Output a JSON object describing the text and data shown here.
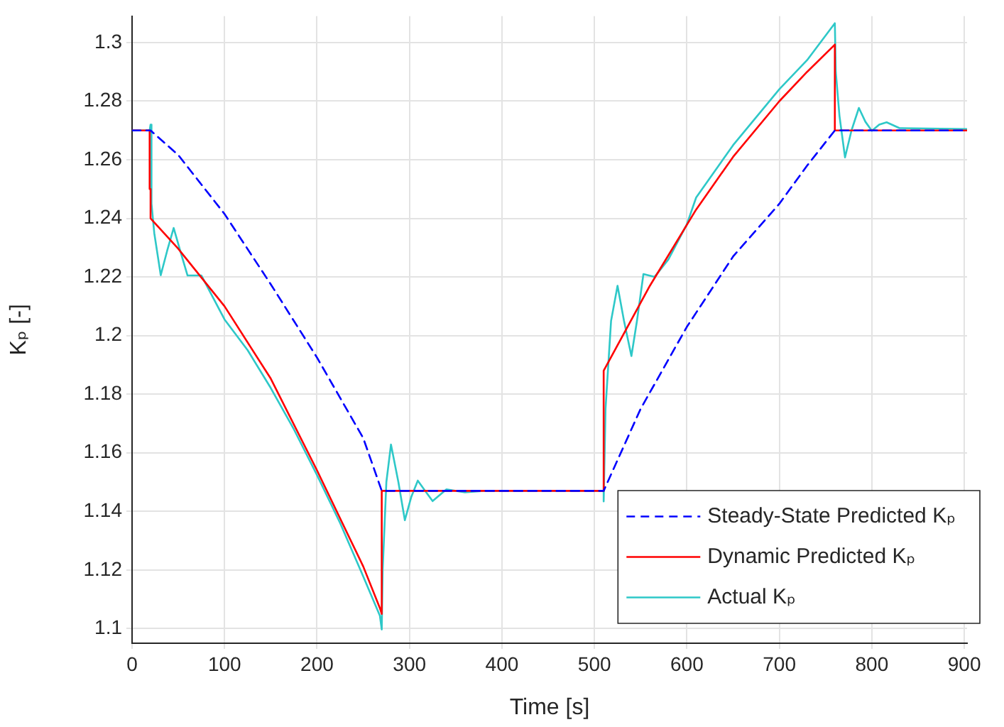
{
  "chart_data": {
    "type": "line",
    "xlabel": "Time [s]",
    "ylabel": "Kₚ [-]",
    "xlim": [
      0,
      903
    ],
    "ylim": [
      1.095,
      1.309
    ],
    "xticks": [
      0,
      100,
      200,
      300,
      400,
      500,
      600,
      700,
      800,
      900
    ],
    "yticks": [
      1.1,
      1.12,
      1.14,
      1.16,
      1.18,
      1.2,
      1.22,
      1.24,
      1.26,
      1.28,
      1.3
    ],
    "grid": true,
    "legend": "bottom right",
    "marker": "none",
    "series": [
      {
        "name": "Steady-State Predicted Kₚ",
        "color": "#0000ff",
        "line_style": "dashed",
        "x": [
          0,
          20,
          50,
          100,
          150,
          200,
          250,
          270,
          510,
          550,
          600,
          650,
          700,
          730,
          760,
          903
        ],
        "values": [
          1.27,
          1.27,
          1.2616,
          1.2415,
          1.2175,
          1.1925,
          1.165,
          1.147,
          1.147,
          1.175,
          1.203,
          1.227,
          1.245,
          1.258,
          1.27,
          1.27
        ]
      },
      {
        "name": "Dynamic Predicted Kₚ",
        "color": "#ff0000",
        "line_style": "solid",
        "x": [
          0,
          19,
          19,
          20,
          20,
          50,
          100,
          150,
          200,
          250,
          268,
          270,
          270,
          510,
          510,
          560,
          610,
          650,
          700,
          730,
          760,
          760,
          903
        ],
        "values": [
          1.27,
          1.27,
          1.25,
          1.25,
          1.24,
          1.2296,
          1.21,
          1.1853,
          1.154,
          1.1212,
          1.107,
          1.105,
          1.147,
          1.147,
          1.188,
          1.217,
          1.243,
          1.261,
          1.28,
          1.29,
          1.2993,
          1.27,
          1.27
        ]
      },
      {
        "name": "Actual Kₚ",
        "color": "#2ec8c8",
        "line_style": "solid",
        "x": [
          0,
          19,
          20,
          21,
          24,
          31,
          38,
          45,
          52,
          60,
          75,
          100,
          125,
          150,
          175,
          200,
          225,
          250,
          268,
          270,
          271,
          275,
          280,
          288,
          295,
          302,
          309,
          317,
          325,
          340,
          360,
          380,
          510,
          510,
          512,
          518,
          525,
          532,
          540,
          546,
          553,
          565,
          580,
          600,
          610,
          650,
          700,
          730,
          760,
          761,
          765,
          771,
          778,
          786,
          793,
          800,
          808,
          816,
          830,
          903
        ],
        "values": [
          1.27,
          1.27,
          1.272,
          1.245,
          1.235,
          1.2206,
          1.229,
          1.2367,
          1.229,
          1.2205,
          1.2205,
          1.2055,
          1.195,
          1.1821,
          1.168,
          1.1524,
          1.136,
          1.1178,
          1.1044,
          1.0997,
          1.12,
          1.15,
          1.1628,
          1.15,
          1.137,
          1.145,
          1.1505,
          1.147,
          1.1435,
          1.1475,
          1.1465,
          1.147,
          1.147,
          1.1434,
          1.175,
          1.205,
          1.217,
          1.205,
          1.193,
          1.205,
          1.221,
          1.22,
          1.226,
          1.238,
          1.2471,
          1.265,
          1.2841,
          1.294,
          1.3066,
          1.29,
          1.275,
          1.2608,
          1.27,
          1.2777,
          1.273,
          1.2699,
          1.272,
          1.2728,
          1.2708,
          1.2705
        ]
      }
    ]
  }
}
